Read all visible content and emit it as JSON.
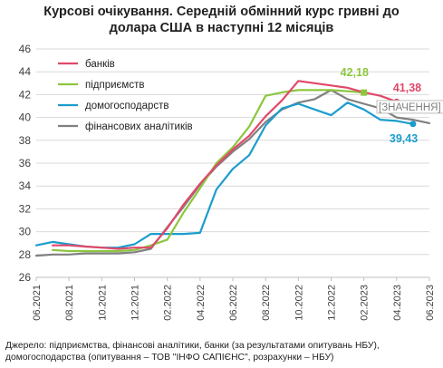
{
  "title_lines": [
    "Курсові  очікування. Середній обмінний курс гривні до",
    "долара США  в наступні  12 місяців"
  ],
  "chart_data": {
    "type": "line",
    "title": "Курсові  очікування. Середній обмінний курс гривні до долара США  в наступні  12 місяців",
    "ylim": [
      26,
      46
    ],
    "yticks": [
      26,
      28,
      30,
      32,
      34,
      36,
      38,
      40,
      42,
      44,
      46
    ],
    "xlim": [
      "06.2021",
      "06.2023"
    ],
    "xticks": [
      "06.2021",
      "08.2021",
      "10.2021",
      "12.2021",
      "02.2022",
      "04.2022",
      "06.2022",
      "08.2022",
      "10.2022",
      "12.2022",
      "02.2023",
      "04.2023",
      "06.2023"
    ],
    "grid": true,
    "legend_position": "top-left",
    "series": [
      {
        "name": "банків",
        "color": "#e0486a",
        "points": [
          [
            "07.2021",
            28.8
          ],
          [
            "08.2021",
            28.8
          ],
          [
            "09.2021",
            28.7
          ],
          [
            "10.2021",
            28.6
          ],
          [
            "11.2021",
            28.5
          ],
          [
            "12.2021",
            28.6
          ],
          [
            "01.2022",
            28.6
          ],
          [
            "02.2022",
            30.3
          ],
          [
            "03.2022",
            32.4
          ],
          [
            "04.2022",
            34.2
          ],
          [
            "05.2022",
            35.8
          ],
          [
            "06.2022",
            37.2
          ],
          [
            "07.2022",
            38.4
          ],
          [
            "08.2022",
            40.1
          ],
          [
            "09.2022",
            41.5
          ],
          [
            "10.2022",
            43.2
          ],
          [
            "11.2022",
            43.0
          ],
          [
            "12.2022",
            42.8
          ],
          [
            "01.2023",
            42.6
          ],
          [
            "02.2023",
            42.2
          ],
          [
            "03.2023",
            41.9
          ],
          [
            "04.2023",
            41.38
          ]
        ]
      },
      {
        "name": "підприємств",
        "color": "#8dc63f",
        "points": [
          [
            "07.2021",
            28.4
          ],
          [
            "08.2021",
            28.3
          ],
          [
            "09.2021",
            28.3
          ],
          [
            "10.2021",
            28.3
          ],
          [
            "11.2021",
            28.3
          ],
          [
            "12.2021",
            28.4
          ],
          [
            "01.2022",
            28.8
          ],
          [
            "02.2022",
            29.3
          ],
          [
            "03.2022",
            31.7
          ],
          [
            "04.2022",
            33.8
          ],
          [
            "05.2022",
            36.0
          ],
          [
            "06.2022",
            37.4
          ],
          [
            "07.2022",
            39.2
          ],
          [
            "08.2022",
            41.9
          ],
          [
            "09.2022",
            42.2
          ],
          [
            "10.2022",
            42.4
          ],
          [
            "11.2022",
            42.4
          ],
          [
            "12.2022",
            42.4
          ],
          [
            "01.2023",
            42.3
          ],
          [
            "02.2023",
            42.18
          ]
        ]
      },
      {
        "name": "домогосподарств",
        "color": "#1b9dcc",
        "points": [
          [
            "06.2021",
            28.8
          ],
          [
            "07.2021",
            29.1
          ],
          [
            "08.2021",
            28.9
          ],
          [
            "09.2021",
            28.7
          ],
          [
            "10.2021",
            28.6
          ],
          [
            "11.2021",
            28.6
          ],
          [
            "12.2021",
            28.9
          ],
          [
            "01.2022",
            29.8
          ],
          [
            "02.2022",
            29.8
          ],
          [
            "03.2022",
            29.8
          ],
          [
            "04.2022",
            29.9
          ],
          [
            "05.2022",
            33.7
          ],
          [
            "06.2022",
            35.5
          ],
          [
            "07.2022",
            36.7
          ],
          [
            "08.2022",
            39.3
          ],
          [
            "09.2022",
            40.8
          ],
          [
            "10.2022",
            41.2
          ],
          [
            "11.2022",
            40.7
          ],
          [
            "12.2022",
            40.2
          ],
          [
            "01.2023",
            41.3
          ],
          [
            "02.2023",
            40.7
          ],
          [
            "03.2023",
            39.8
          ],
          [
            "04.2023",
            39.7
          ],
          [
            "05.2023",
            39.43
          ]
        ]
      },
      {
        "name": "фінансових  аналітиків",
        "color": "#808080",
        "points": [
          [
            "06.2021",
            27.9
          ],
          [
            "07.2021",
            28.0
          ],
          [
            "08.2021",
            28.0
          ],
          [
            "09.2021",
            28.1
          ],
          [
            "10.2021",
            28.1
          ],
          [
            "11.2021",
            28.1
          ],
          [
            "12.2021",
            28.2
          ],
          [
            "01.2022",
            28.5
          ],
          [
            "02.2022",
            30.4
          ],
          [
            "03.2022",
            32.2
          ],
          [
            "04.2022",
            34.1
          ],
          [
            "05.2022",
            35.7
          ],
          [
            "06.2022",
            37.0
          ],
          [
            "07.2022",
            38.1
          ],
          [
            "08.2022",
            39.6
          ],
          [
            "09.2022",
            40.7
          ],
          [
            "10.2022",
            41.3
          ],
          [
            "11.2022",
            41.6
          ],
          [
            "12.2022",
            42.4
          ],
          [
            "01.2023",
            41.6
          ],
          [
            "02.2023",
            41.2
          ],
          [
            "03.2023",
            40.8
          ],
          [
            "04.2023",
            40.0
          ],
          [
            "05.2023",
            39.8
          ],
          [
            "06.2023",
            39.5
          ]
        ]
      }
    ],
    "annotations": [
      {
        "series": "підприємств",
        "text": "42,18",
        "color": "#8dc63f"
      },
      {
        "series": "банків",
        "text": "41,38",
        "color": "#e0486a"
      },
      {
        "series": "домогосподарств",
        "text": "39,43",
        "color": "#1b9dcc"
      },
      {
        "series": "фінансових  аналітиків",
        "text": "[ЗНАЧЕННЯ]",
        "color": "#808080"
      }
    ]
  },
  "footer_lines": [
    "Джерело: підприємства, фінансові аналітики, банки (за результатами опитувань НБУ),",
    "домогосподарства (опитування – ТОВ \"ІНФО САПІЄНС\", розрахунки – НБУ)"
  ]
}
